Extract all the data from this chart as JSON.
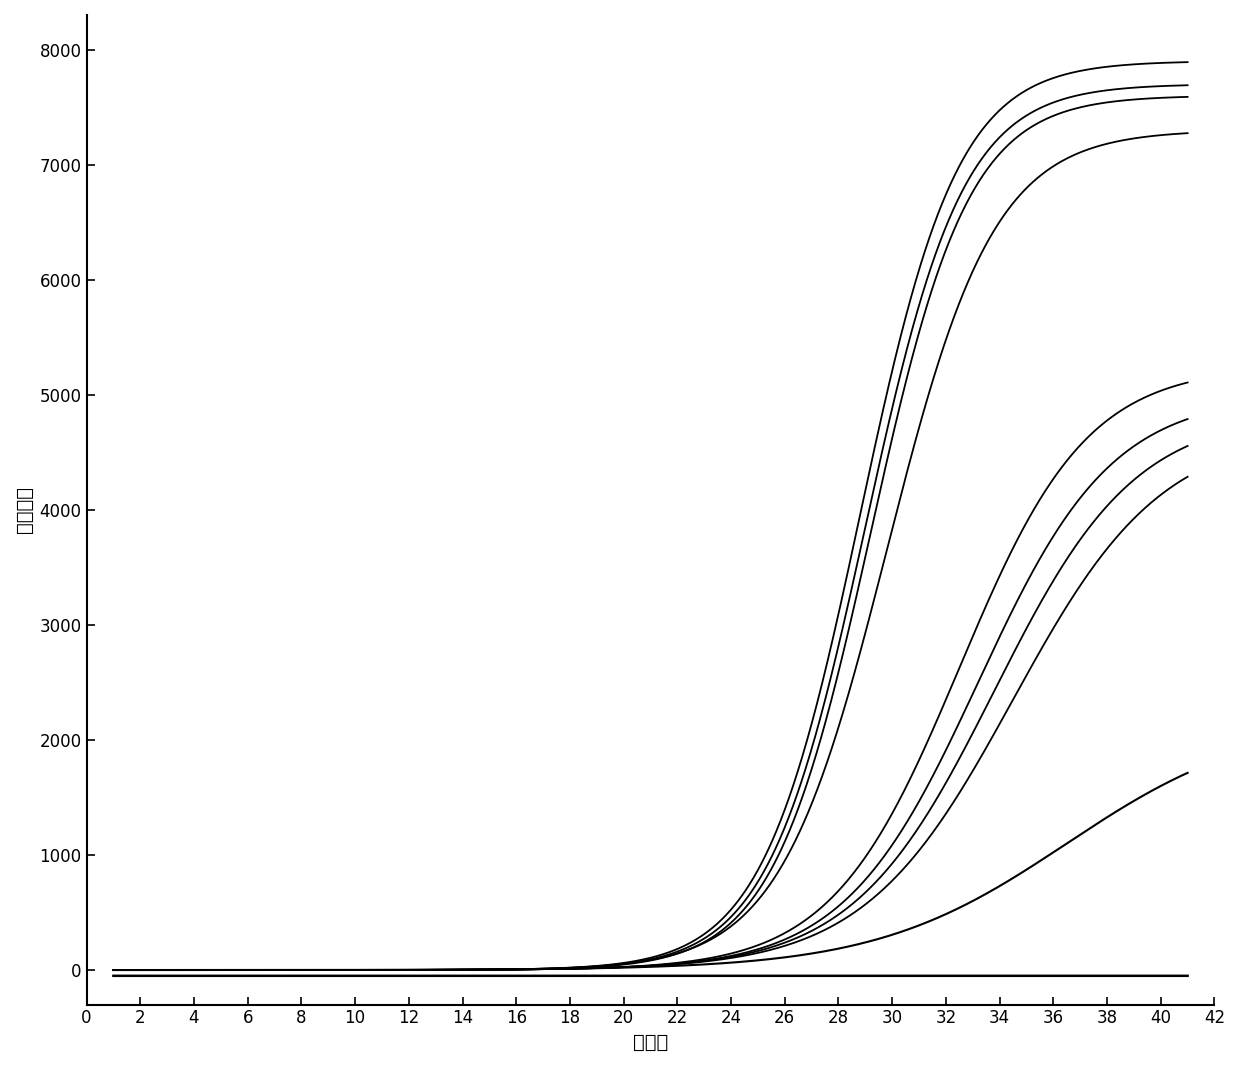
{
  "title": "",
  "xlabel": "循环数",
  "ylabel": "荧光强度",
  "xlim": [
    0,
    42
  ],
  "ylim": [
    -300,
    8300
  ],
  "xticks": [
    0,
    2,
    4,
    6,
    8,
    10,
    12,
    14,
    16,
    18,
    20,
    22,
    24,
    26,
    28,
    30,
    32,
    34,
    36,
    38,
    40,
    42
  ],
  "yticks": [
    0,
    1000,
    2000,
    3000,
    4000,
    5000,
    6000,
    7000,
    8000
  ],
  "curves": [
    {
      "L": 7900,
      "k": 0.55,
      "x0": 28.8,
      "color": "#000000",
      "lw": 1.3
    },
    {
      "L": 7700,
      "k": 0.55,
      "x0": 29.0,
      "color": "#000000",
      "lw": 1.3
    },
    {
      "L": 7600,
      "k": 0.55,
      "x0": 29.2,
      "color": "#000000",
      "lw": 1.3
    },
    {
      "L": 7300,
      "k": 0.5,
      "x0": 29.8,
      "color": "#000000",
      "lw": 1.3
    },
    {
      "L": 5250,
      "k": 0.42,
      "x0": 32.5,
      "color": "#000000",
      "lw": 1.3
    },
    {
      "L": 5000,
      "k": 0.4,
      "x0": 33.2,
      "color": "#000000",
      "lw": 1.3
    },
    {
      "L": 4850,
      "k": 0.38,
      "x0": 33.8,
      "color": "#000000",
      "lw": 1.3
    },
    {
      "L": 4700,
      "k": 0.36,
      "x0": 34.5,
      "color": "#000000",
      "lw": 1.3
    },
    {
      "L": 2200,
      "k": 0.28,
      "x0": 36.5,
      "color": "#000000",
      "lw": 1.5
    },
    {
      "L": -50,
      "k": 0.0,
      "x0": 20.0,
      "color": "#000000",
      "lw": 1.8
    }
  ],
  "background_color": "#ffffff",
  "label_fontsize": 14,
  "tick_fontsize": 12
}
